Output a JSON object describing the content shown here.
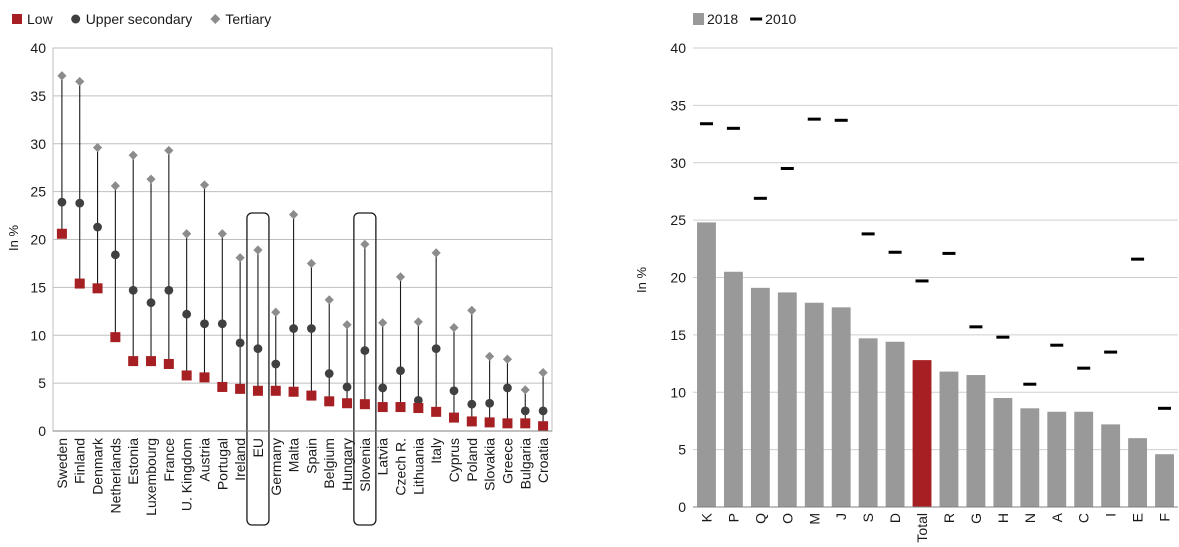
{
  "chart_data": [
    {
      "type": "scatter",
      "categories": [
        "Sweden",
        "Finland",
        "Denmark",
        "Netherlands",
        "Estonia",
        "Luxembourg",
        "France",
        "U. Kingdom",
        "Austria",
        "Portugal",
        "Ireland",
        "EU",
        "Germany",
        "Malta",
        "Spain",
        "Belgium",
        "Hungary",
        "Slovenia",
        "Latvia",
        "Czech R.",
        "Lithuania",
        "Italy",
        "Cyprus",
        "Poland",
        "Slovakia",
        "Greece",
        "Bulgaria",
        "Croatia"
      ],
      "highlighted": [
        "EU",
        "Slovenia"
      ],
      "series": [
        {
          "name": "Low",
          "marker": "square",
          "color": "#a51f23",
          "values": [
            20.6,
            15.4,
            14.9,
            9.8,
            7.3,
            7.3,
            7.0,
            5.8,
            5.6,
            4.6,
            4.4,
            4.2,
            4.2,
            4.1,
            3.7,
            3.1,
            2.9,
            2.8,
            2.5,
            2.5,
            2.4,
            2.0,
            1.4,
            1.0,
            0.9,
            0.8,
            0.8,
            0.5
          ]
        },
        {
          "name": "Upper secondary",
          "marker": "circle",
          "color": "#404040",
          "values": [
            23.9,
            23.8,
            21.3,
            18.4,
            14.7,
            13.4,
            14.7,
            12.2,
            11.2,
            11.2,
            9.2,
            8.6,
            7.0,
            10.7,
            10.7,
            6.0,
            4.6,
            8.4,
            4.5,
            6.3,
            3.2,
            8.6,
            4.2,
            2.8,
            2.9,
            4.5,
            2.1,
            2.1
          ]
        },
        {
          "name": "Tertiary",
          "marker": "diamond",
          "color": "#8c8c8c",
          "values": [
            37.1,
            36.5,
            29.6,
            25.6,
            28.8,
            26.3,
            29.3,
            20.6,
            25.7,
            20.6,
            18.1,
            18.9,
            12.4,
            22.6,
            17.5,
            13.7,
            11.1,
            19.5,
            11.3,
            16.1,
            11.4,
            18.6,
            10.8,
            12.6,
            7.8,
            7.5,
            4.3,
            6.1
          ]
        }
      ],
      "xlabel": "",
      "ylabel": "In %",
      "ylim": [
        0,
        40
      ],
      "yticks": [
        0,
        5,
        10,
        15,
        20,
        25,
        30,
        35,
        40
      ],
      "grid": true,
      "legend": "top-left"
    },
    {
      "type": "bar",
      "categories": [
        "K",
        "P",
        "Q",
        "O",
        "M",
        "J",
        "S",
        "D",
        "Total",
        "R",
        "G",
        "H",
        "N",
        "A",
        "C",
        "I",
        "E",
        "F"
      ],
      "highlighted": [
        "Total"
      ],
      "series": [
        {
          "name": "2018",
          "color": "#999999",
          "highlight_color": "#a51f23",
          "values": [
            24.8,
            20.5,
            19.1,
            18.7,
            17.8,
            17.4,
            14.7,
            14.4,
            12.8,
            11.8,
            11.5,
            9.5,
            8.6,
            8.3,
            8.3,
            7.2,
            6.0,
            4.6
          ]
        },
        {
          "name": "2010",
          "marker": "dash",
          "color": "#000000",
          "values": [
            33.4,
            33.0,
            26.9,
            29.5,
            33.8,
            33.7,
            23.8,
            22.2,
            19.7,
            22.1,
            15.7,
            14.8,
            10.7,
            14.1,
            12.1,
            13.5,
            21.6,
            8.6
          ]
        }
      ],
      "xlabel": "",
      "ylabel": "In %",
      "ylim": [
        0,
        40
      ],
      "yticks": [
        0,
        5,
        10,
        15,
        20,
        25,
        30,
        35,
        40
      ],
      "grid": true,
      "legend": "top-left"
    }
  ]
}
